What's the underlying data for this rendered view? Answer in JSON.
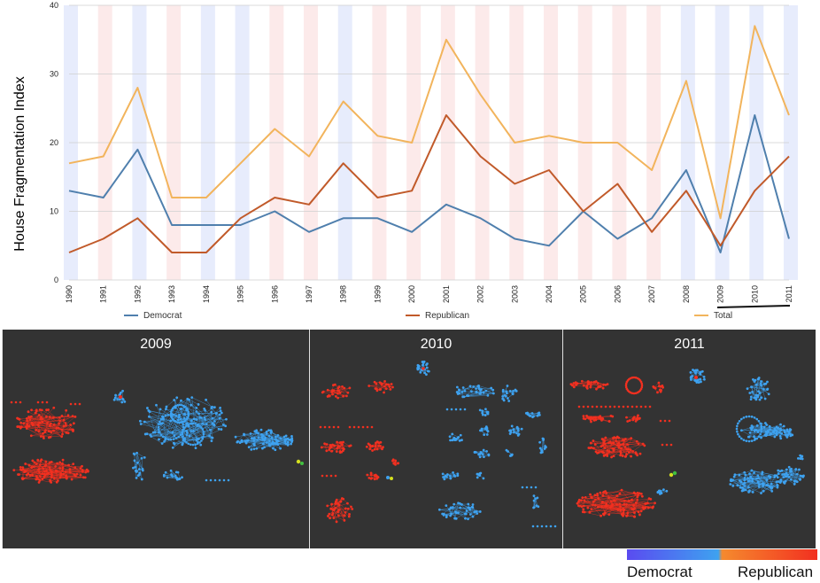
{
  "chart_data": {
    "type": "line",
    "ylabel": "House Fragmentation Index",
    "xlabel": "",
    "ylim": [
      0,
      40
    ],
    "yticks": [
      "0",
      "10",
      "20",
      "30",
      "40"
    ],
    "x": [
      "1990",
      "1991",
      "1992",
      "1993",
      "1994",
      "1995",
      "1996",
      "1997",
      "1998",
      "1999",
      "2000",
      "2001",
      "2002",
      "2003",
      "2004",
      "2005",
      "2006",
      "2007",
      "2008",
      "2009",
      "2010",
      "2011"
    ],
    "series": [
      {
        "name": "Democrat",
        "color": "#4f7fad",
        "values": [
          13,
          12,
          19,
          8,
          8,
          8,
          10,
          7,
          9,
          9,
          7,
          11,
          9,
          6,
          5,
          10,
          6,
          9,
          16,
          4,
          24,
          6
        ]
      },
      {
        "name": "Republican",
        "color": "#c15a2a",
        "values": [
          4,
          6,
          9,
          4,
          4,
          9,
          12,
          11,
          17,
          12,
          13,
          24,
          18,
          14,
          16,
          10,
          14,
          7,
          13,
          5,
          13,
          18
        ]
      },
      {
        "name": "Total",
        "color": "#f2b45c",
        "values": [
          17,
          18,
          28,
          12,
          12,
          17,
          22,
          18,
          26,
          21,
          20,
          35,
          27,
          20,
          21,
          20,
          20,
          16,
          29,
          9,
          37,
          24
        ]
      }
    ],
    "grid": true,
    "legend": "bottom"
  },
  "panels": [
    {
      "title": "2009"
    },
    {
      "title": "2010"
    },
    {
      "title": "2011"
    }
  ],
  "party_scale": {
    "left_label": "Democrat",
    "right_label": "Republican",
    "colors": {
      "democrat": "#3ea2f0",
      "republican": "#f23020"
    }
  }
}
